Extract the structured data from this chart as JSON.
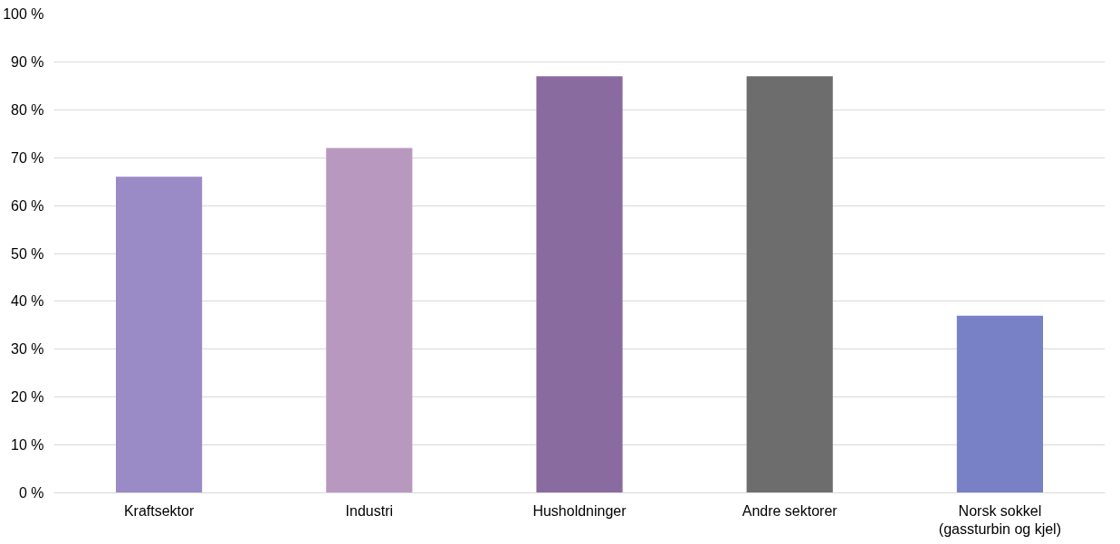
{
  "chart_data": {
    "type": "bar",
    "categories": [
      "Kraftsektor",
      "Industri",
      "Husholdninger",
      "Andre sektorer",
      "Norsk sokkel\n(gassturbin og kjel)"
    ],
    "values": [
      66,
      72,
      87,
      87,
      37
    ],
    "colors": [
      "#9a8ac6",
      "#b998c0",
      "#8a6ba0",
      "#6d6d6d",
      "#7880c6"
    ],
    "ylim": [
      0,
      100
    ],
    "yticks": [
      {
        "value": 0,
        "label": "0 %"
      },
      {
        "value": 10,
        "label": "10 %"
      },
      {
        "value": 20,
        "label": "20 %"
      },
      {
        "value": 30,
        "label": "30 %"
      },
      {
        "value": 40,
        "label": "40 %"
      },
      {
        "value": 50,
        "label": "50 %"
      },
      {
        "value": 60,
        "label": "60 %"
      },
      {
        "value": 70,
        "label": "70 %"
      },
      {
        "value": 80,
        "label": "80 %"
      },
      {
        "value": 90,
        "label": "90 %"
      },
      {
        "value": 100,
        "label": "100 %"
      }
    ],
    "grid": "y"
  }
}
